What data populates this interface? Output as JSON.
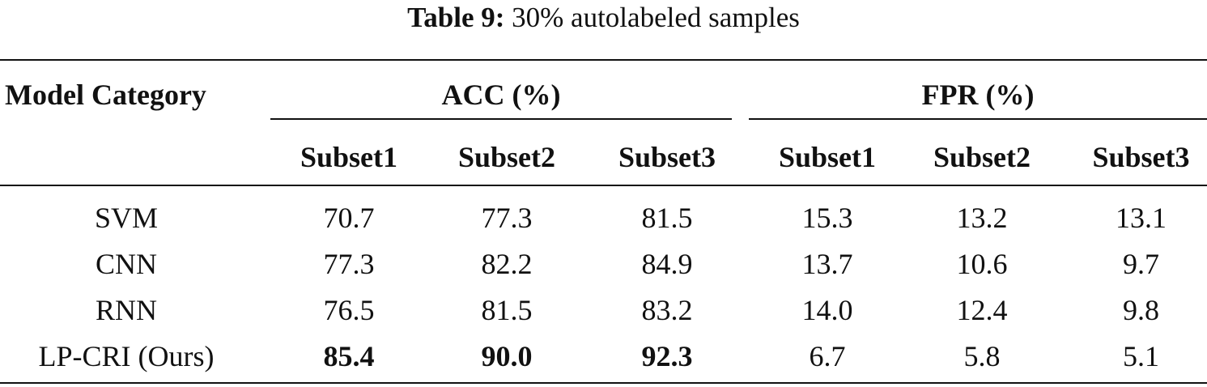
{
  "caption": {
    "label": "Table 9:",
    "text": "30% autolabeled samples"
  },
  "header": {
    "model_col": "Model Category",
    "groups": [
      "ACC (%)",
      "FPR (%)"
    ],
    "subsets": [
      "Subset1",
      "Subset2",
      "Subset3",
      "Subset1",
      "Subset2",
      "Subset3"
    ]
  },
  "rows": [
    {
      "model": "SVM",
      "values": [
        "70.7",
        "77.3",
        "81.5",
        "15.3",
        "13.2",
        "13.1"
      ],
      "bold": [
        false,
        false,
        false,
        false,
        false,
        false
      ]
    },
    {
      "model": "CNN",
      "values": [
        "77.3",
        "82.2",
        "84.9",
        "13.7",
        "10.6",
        "9.7"
      ],
      "bold": [
        false,
        false,
        false,
        false,
        false,
        false
      ]
    },
    {
      "model": "RNN",
      "values": [
        "76.5",
        "81.5",
        "83.2",
        "14.0",
        "12.4",
        "9.8"
      ],
      "bold": [
        false,
        false,
        false,
        false,
        false,
        false
      ]
    },
    {
      "model": "LP-CRI (Ours)",
      "values": [
        "85.4",
        "90.0",
        "92.3",
        "6.7",
        "5.8",
        "5.1"
      ],
      "bold": [
        true,
        true,
        true,
        false,
        false,
        false
      ]
    }
  ]
}
